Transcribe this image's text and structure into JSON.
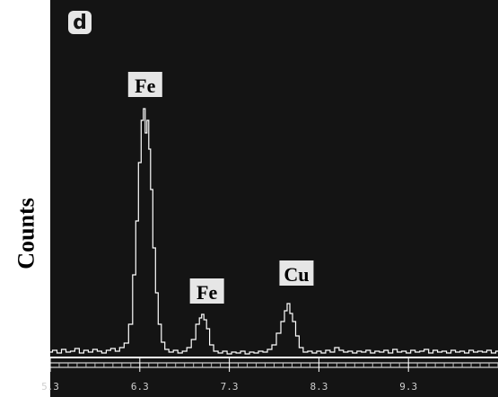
{
  "panel_letter": "d",
  "chart_data": {
    "type": "line",
    "ylabel": "Counts",
    "xlabel": "",
    "title": "",
    "xlim": [
      5.3,
      10.3
    ],
    "ylim": [
      0,
      330
    ],
    "x_ticks": [
      "5.3",
      "6.3",
      "7.3",
      "8.3",
      "9.3"
    ],
    "peak_labels": [
      {
        "text": "Fe",
        "x": 6.36,
        "y": 300
      },
      {
        "text": "Fe",
        "x": 7.05,
        "y": 70
      },
      {
        "text": "Cu",
        "x": 8.05,
        "y": 90
      }
    ],
    "series": [
      {
        "points": [
          [
            5.3,
            4
          ],
          [
            5.35,
            6
          ],
          [
            5.4,
            3
          ],
          [
            5.45,
            7
          ],
          [
            5.5,
            4
          ],
          [
            5.55,
            5
          ],
          [
            5.6,
            8
          ],
          [
            5.65,
            3
          ],
          [
            5.7,
            6
          ],
          [
            5.75,
            4
          ],
          [
            5.8,
            7
          ],
          [
            5.85,
            5
          ],
          [
            5.9,
            3
          ],
          [
            5.95,
            6
          ],
          [
            6.0,
            8
          ],
          [
            6.05,
            5
          ],
          [
            6.1,
            9
          ],
          [
            6.15,
            14
          ],
          [
            6.2,
            35
          ],
          [
            6.24,
            90
          ],
          [
            6.27,
            150
          ],
          [
            6.3,
            215
          ],
          [
            6.33,
            262
          ],
          [
            6.35,
            275
          ],
          [
            6.37,
            248
          ],
          [
            6.39,
            262
          ],
          [
            6.41,
            230
          ],
          [
            6.43,
            185
          ],
          [
            6.46,
            120
          ],
          [
            6.49,
            70
          ],
          [
            6.52,
            35
          ],
          [
            6.56,
            15
          ],
          [
            6.6,
            7
          ],
          [
            6.65,
            4
          ],
          [
            6.7,
            6
          ],
          [
            6.75,
            3
          ],
          [
            6.8,
            5
          ],
          [
            6.85,
            9
          ],
          [
            6.9,
            18
          ],
          [
            6.95,
            35
          ],
          [
            6.98,
            42
          ],
          [
            7.0,
            46
          ],
          [
            7.03,
            40
          ],
          [
            7.06,
            30
          ],
          [
            7.1,
            12
          ],
          [
            7.15,
            5
          ],
          [
            7.2,
            3
          ],
          [
            7.25,
            5
          ],
          [
            7.3,
            2
          ],
          [
            7.35,
            4
          ],
          [
            7.4,
            3
          ],
          [
            7.45,
            5
          ],
          [
            7.5,
            2
          ],
          [
            7.55,
            4
          ],
          [
            7.6,
            3
          ],
          [
            7.65,
            5
          ],
          [
            7.7,
            4
          ],
          [
            7.75,
            7
          ],
          [
            7.8,
            12
          ],
          [
            7.85,
            25
          ],
          [
            7.9,
            38
          ],
          [
            7.93,
            50
          ],
          [
            7.96,
            58
          ],
          [
            7.99,
            47
          ],
          [
            8.02,
            38
          ],
          [
            8.06,
            22
          ],
          [
            8.1,
            9
          ],
          [
            8.15,
            4
          ],
          [
            8.2,
            5
          ],
          [
            8.25,
            3
          ],
          [
            8.3,
            5
          ],
          [
            8.35,
            3
          ],
          [
            8.4,
            6
          ],
          [
            8.45,
            4
          ],
          [
            8.5,
            9
          ],
          [
            8.55,
            6
          ],
          [
            8.6,
            4
          ],
          [
            8.65,
            5
          ],
          [
            8.7,
            3
          ],
          [
            8.75,
            5
          ],
          [
            8.8,
            4
          ],
          [
            8.85,
            6
          ],
          [
            8.9,
            3
          ],
          [
            8.95,
            5
          ],
          [
            9.0,
            4
          ],
          [
            9.05,
            6
          ],
          [
            9.1,
            3
          ],
          [
            9.15,
            7
          ],
          [
            9.2,
            4
          ],
          [
            9.25,
            5
          ],
          [
            9.3,
            3
          ],
          [
            9.35,
            6
          ],
          [
            9.4,
            4
          ],
          [
            9.45,
            5
          ],
          [
            9.5,
            7
          ],
          [
            9.55,
            3
          ],
          [
            9.6,
            6
          ],
          [
            9.65,
            4
          ],
          [
            9.7,
            5
          ],
          [
            9.75,
            3
          ],
          [
            9.8,
            6
          ],
          [
            9.85,
            4
          ],
          [
            9.9,
            5
          ],
          [
            9.95,
            3
          ],
          [
            10.0,
            6
          ],
          [
            10.05,
            4
          ],
          [
            10.1,
            5
          ],
          [
            10.15,
            4
          ],
          [
            10.2,
            6
          ],
          [
            10.25,
            3
          ],
          [
            10.3,
            5
          ]
        ]
      }
    ]
  },
  "colors": {
    "background": "#141414",
    "trace": "#ffffff",
    "label_box": "#e6e6e6",
    "tick_text": "#cfcfcf"
  }
}
